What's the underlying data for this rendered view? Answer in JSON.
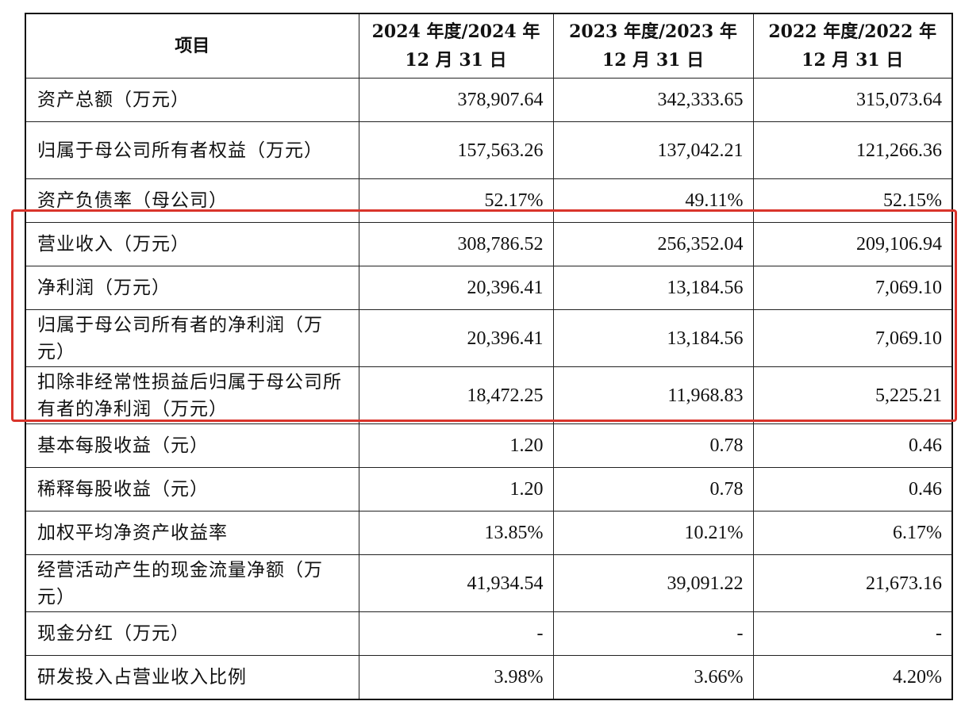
{
  "table": {
    "headers": [
      "项目",
      "2024 年度/2024 年 12 月 31 日",
      "2023 年度/2023 年 12 月 31 日",
      "2022 年度/2022 年 12 月 31 日"
    ],
    "rows": [
      {
        "label": "资产总额（万元）",
        "values": [
          "378,907.64",
          "342,333.65",
          "315,073.64"
        ]
      },
      {
        "label": "归属于母公司所有者权益（万元）",
        "values": [
          "157,563.26",
          "137,042.21",
          "121,266.36"
        ]
      },
      {
        "label": "资产负债率（母公司）",
        "values": [
          "52.17%",
          "49.11%",
          "52.15%"
        ]
      },
      {
        "label": "营业收入（万元）",
        "values": [
          "308,786.52",
          "256,352.04",
          "209,106.94"
        ]
      },
      {
        "label": "净利润（万元）",
        "values": [
          "20,396.41",
          "13,184.56",
          "7,069.10"
        ]
      },
      {
        "label": "归属于母公司所有者的净利润（万元）",
        "values": [
          "20,396.41",
          "13,184.56",
          "7,069.10"
        ]
      },
      {
        "label": "扣除非经常性损益后归属于母公司所有者的净利润（万元）",
        "values": [
          "18,472.25",
          "11,968.83",
          "5,225.21"
        ]
      },
      {
        "label": "基本每股收益（元）",
        "values": [
          "1.20",
          "0.78",
          "0.46"
        ]
      },
      {
        "label": "稀释每股收益（元）",
        "values": [
          "1.20",
          "0.78",
          "0.46"
        ]
      },
      {
        "label": "加权平均净资产收益率",
        "values": [
          "13.85%",
          "10.21%",
          "6.17%"
        ]
      },
      {
        "label": "经营活动产生的现金流量净额（万元）",
        "values": [
          "41,934.54",
          "39,091.22",
          "21,673.16"
        ]
      },
      {
        "label": "现金分红（万元）",
        "values": [
          "-",
          "-",
          "-"
        ]
      },
      {
        "label": "研发投入占营业收入比例",
        "values": [
          "3.98%",
          "3.66%",
          "4.20%"
        ]
      }
    ]
  },
  "highlight": {
    "color": "#d9342b",
    "rows_from": 3,
    "rows_to": 6
  }
}
